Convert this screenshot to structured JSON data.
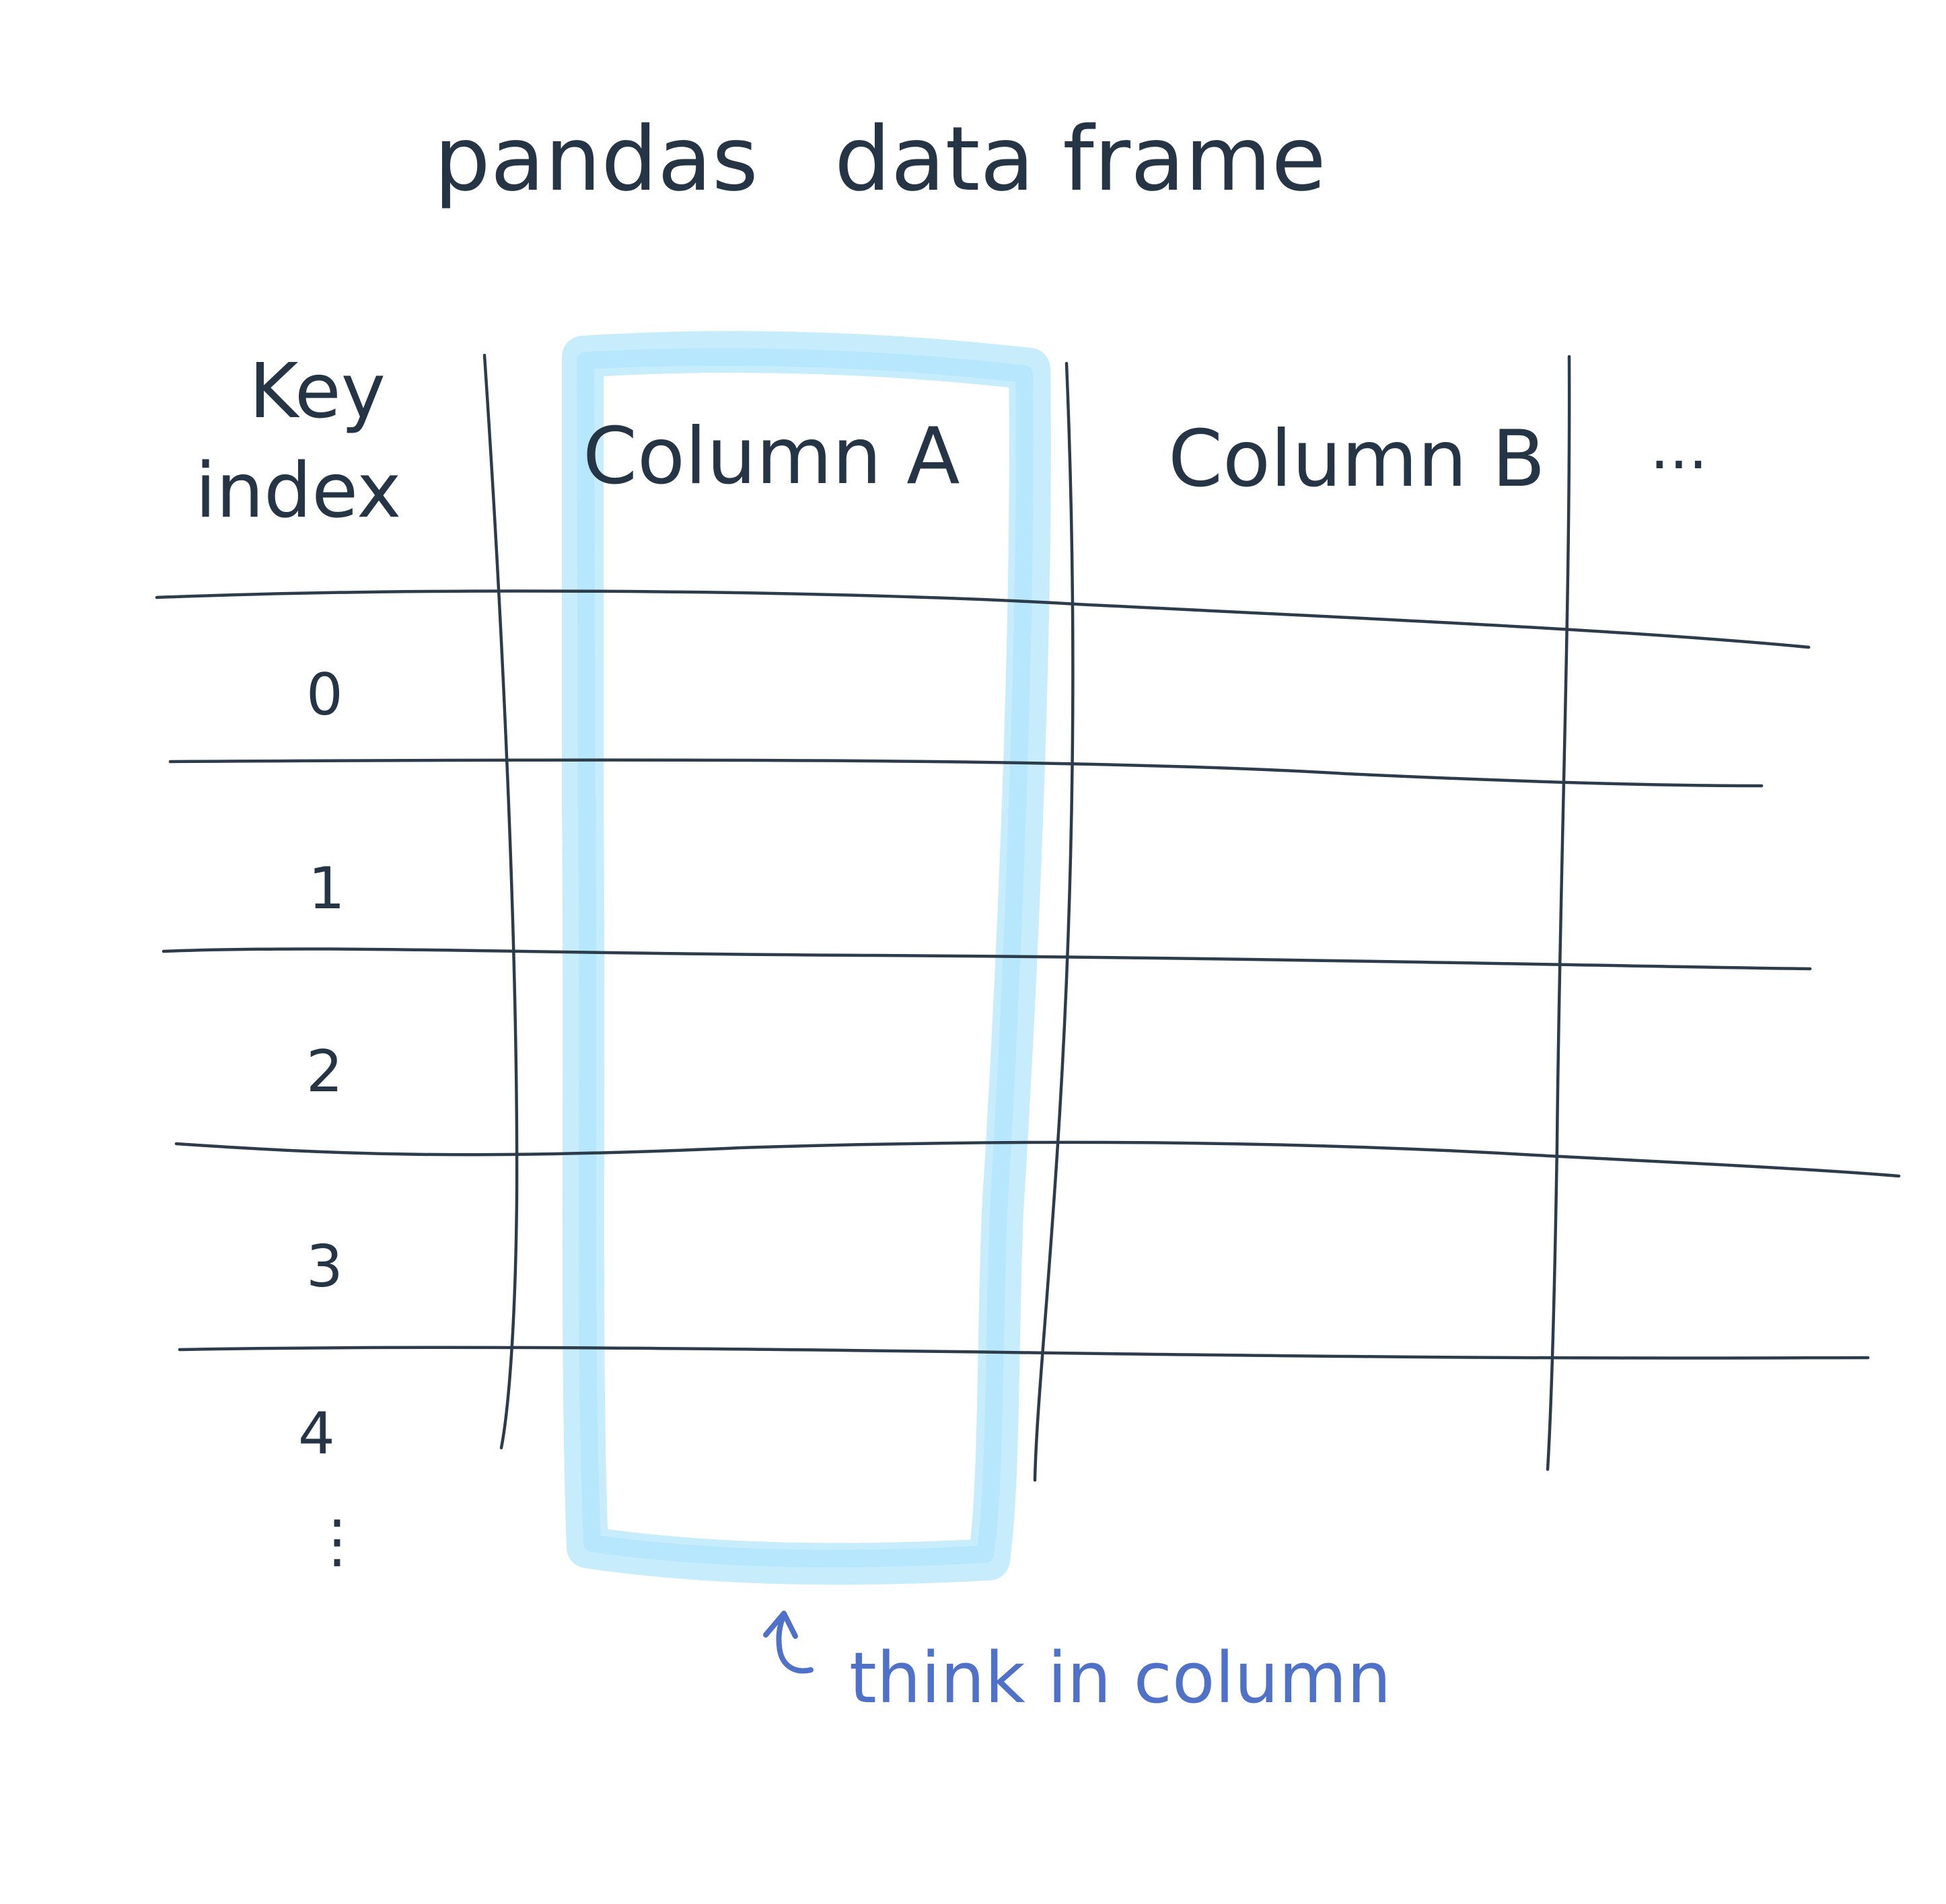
{
  "title": {
    "word1": "pandas",
    "word2": "data frame"
  },
  "table": {
    "index_header": {
      "line1": "Key",
      "line2": "index"
    },
    "columns": [
      "Column A",
      "Column B",
      "..."
    ],
    "rows": [
      "0",
      "1",
      "2",
      "3",
      "4"
    ],
    "row_continuation": "⋮"
  },
  "annotation": {
    "text": "think in column",
    "arrow_icon": "curved-arrow-up-icon"
  },
  "colors": {
    "ink": "#253545",
    "highlight": "#bdeafc",
    "note": "#4f72c8",
    "background": "#ffffff"
  }
}
